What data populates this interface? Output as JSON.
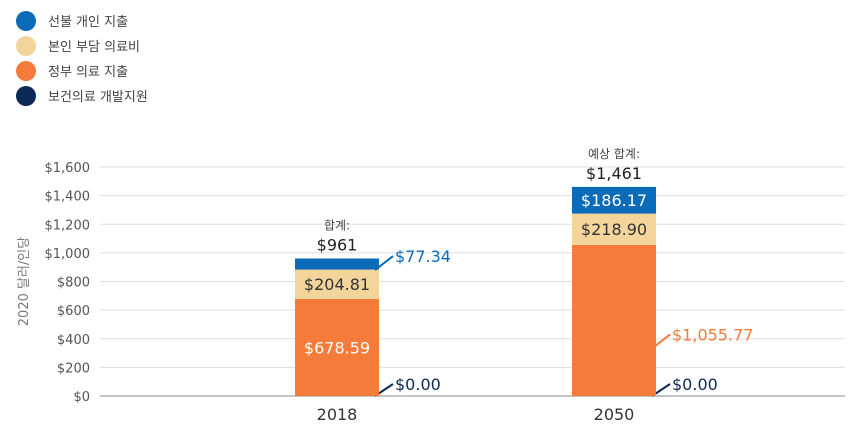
{
  "chart_data": {
    "type": "bar",
    "stacked": true,
    "categories": [
      "2018",
      "2050"
    ],
    "ylabel": "2020 달러/인당",
    "ylim": [
      0,
      1600
    ],
    "yticks": [
      0,
      200,
      400,
      600,
      800,
      1000,
      1200,
      1400,
      1600
    ],
    "ytick_labels": [
      "$0",
      "$200",
      "$400",
      "$600",
      "$800",
      "$1,000",
      "$1,200",
      "$1,400",
      "$1,600"
    ],
    "grid": true,
    "legend_position": "top-left",
    "series": [
      {
        "name": "보건의료 개발지원",
        "color": "#0c2a55",
        "values": [
          0.0,
          0.0
        ],
        "labels": [
          "$0.00",
          "$0.00"
        ],
        "label_mode": [
          "outside",
          "outside"
        ]
      },
      {
        "name": "정부 의료 지출",
        "color": "#f47b3a",
        "values": [
          678.59,
          1055.77
        ],
        "labels": [
          "$678.59",
          "$1,055.77"
        ],
        "label_mode": [
          "inside",
          "outside"
        ]
      },
      {
        "name": "본인 부담 의료비",
        "color": "#f3d59c",
        "values": [
          204.81,
          218.9
        ],
        "labels": [
          "$204.81",
          "$218.90"
        ],
        "label_mode": [
          "inside",
          "inside"
        ]
      },
      {
        "name": "선불 개인 지출",
        "color": "#0a6bb8",
        "values": [
          77.34,
          186.17
        ],
        "labels": [
          "$77.34",
          "$186.17"
        ],
        "label_mode": [
          "outside",
          "inside"
        ]
      }
    ],
    "totals": [
      {
        "label": "합계:",
        "value": "$961"
      },
      {
        "label": "예상 합계:",
        "value": "$1,461"
      }
    ]
  },
  "legend": [
    {
      "label": "선불 개인 지출",
      "color": "#0a6bb8"
    },
    {
      "label": "본인 부담 의료비",
      "color": "#f3d59c"
    },
    {
      "label": "정부 의료 지출",
      "color": "#f47b3a"
    },
    {
      "label": "보건의료 개발지원",
      "color": "#0c2a55"
    }
  ]
}
